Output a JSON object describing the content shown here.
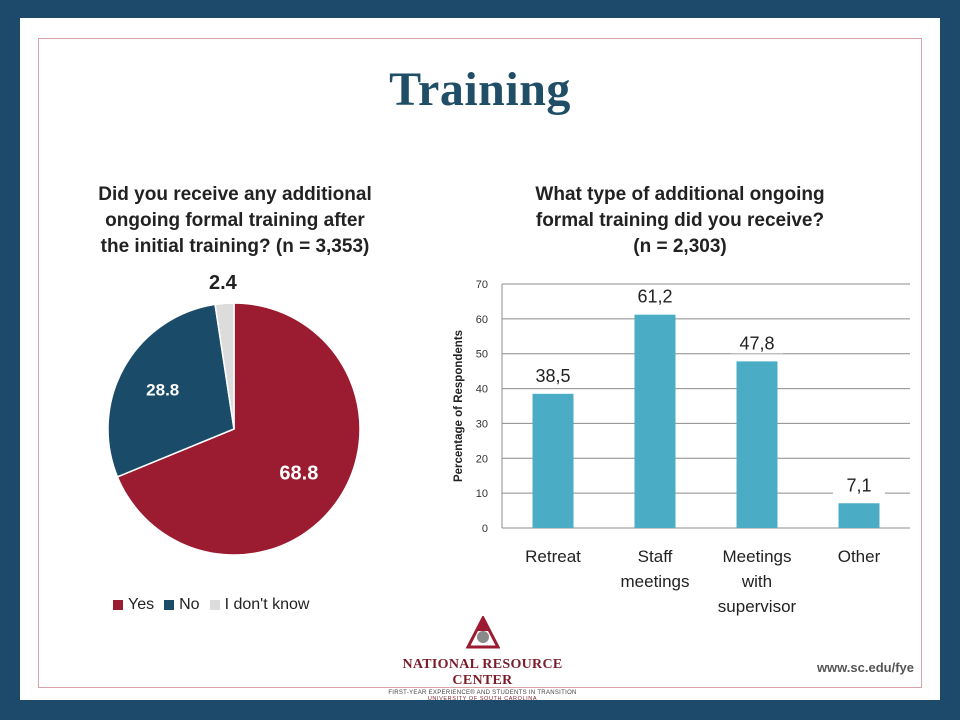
{
  "slide_title": "Training",
  "pie": {
    "title": "Did you receive any additional ongoing formal training after the initial training? (n = 3,353)",
    "title_lines": [
      "Did you receive any additional",
      "ongoing formal training after",
      "the initial training? (n = 3,353)"
    ],
    "legend": [
      "Yes",
      "No",
      "I don't know"
    ]
  },
  "bar": {
    "title_lines": [
      "What type of additional ongoing",
      "formal training did you receive?",
      "(n = 2,303)"
    ]
  },
  "chart_data": [
    {
      "type": "pie",
      "title": "Did you receive any additional ongoing formal training after the initial training? (n = 3,353)",
      "labels": [
        "Yes",
        "No",
        "I don't know"
      ],
      "values": [
        68.8,
        28.8,
        2.4
      ],
      "value_labels": [
        "68.8",
        "28.8",
        "2.4"
      ],
      "colors": [
        "#9b1b30",
        "#1a4b68",
        "#dcdcdc"
      ],
      "legend_position": "bottom"
    },
    {
      "type": "bar",
      "title": "What type of additional ongoing formal training did you receive? (n = 2,303)",
      "categories": [
        "Retreat",
        "Staff meetings",
        "Meetings with supervisor",
        "Other"
      ],
      "category_lines": [
        [
          "Retreat"
        ],
        [
          "Staff",
          "meetings"
        ],
        [
          "Meetings",
          "with",
          "supervisor"
        ],
        [
          "Other"
        ]
      ],
      "values": [
        38.5,
        61.2,
        47.8,
        7.1
      ],
      "value_labels": [
        "38,5",
        "61,2",
        "47,8",
        "7,1"
      ],
      "ylabel": "Percentage of Respondents",
      "ylim": [
        0,
        70
      ],
      "yticks": [
        0,
        10,
        20,
        30,
        40,
        50,
        60,
        70
      ],
      "grid": true,
      "bar_color": "#4bacc6"
    }
  ],
  "footer": {
    "org_name": "NATIONAL RESOURCE CENTER",
    "org_sub1": "FIRST-YEAR EXPERIENCE® AND STUDENTS IN TRANSITION",
    "org_sub2": "UNIVERSITY OF SOUTH CAROLINA",
    "url": "www.sc.edu/fye"
  }
}
